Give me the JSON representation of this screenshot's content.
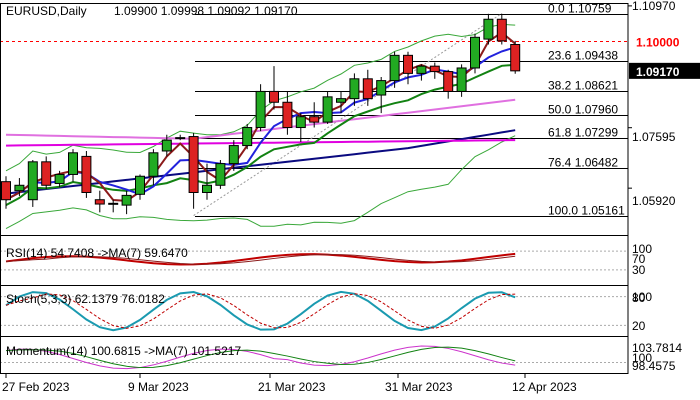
{
  "chart_data": {
    "type": "candlestick",
    "title": "EURUSD,Daily",
    "ohlc_header": "1.09900 1.09998 1.09092 1.09170",
    "last_price": "1.09170",
    "level_label": "1.10000",
    "price_axis": {
      "ylim": [
        1.0465,
        1.1105
      ],
      "ticks": [
        "1.10970",
        "1.07595",
        "1.05920"
      ]
    },
    "date_axis": [
      "27 Feb 2023",
      "9 Mar 2023",
      "21 Mar 2023",
      "31 Mar 2023",
      "12 Apr 2023"
    ],
    "fib_levels": [
      {
        "label": "0.0 1.10759",
        "value": 1.10759
      },
      {
        "label": "23.6 1.09438",
        "value": 1.09438
      },
      {
        "label": "38.2 1.08621",
        "value": 1.08621
      },
      {
        "label": "50.0 1.07960",
        "value": 1.0796
      },
      {
        "label": "61.8 1.07299",
        "value": 1.07299
      },
      {
        "label": "76.4 1.06482",
        "value": 1.06482
      },
      {
        "label": "100.0 1.05161",
        "value": 1.05161
      }
    ],
    "candles": [
      {
        "o": 1.061,
        "h": 1.0625,
        "l": 1.0535,
        "c": 1.056
      },
      {
        "o": 1.0585,
        "h": 1.062,
        "l": 1.057,
        "c": 1.06
      },
      {
        "o": 1.056,
        "h": 1.067,
        "l": 1.054,
        "c": 1.0665
      },
      {
        "o": 1.0665,
        "h": 1.068,
        "l": 1.059,
        "c": 1.06
      },
      {
        "o": 1.0605,
        "h": 1.064,
        "l": 1.0595,
        "c": 1.063
      },
      {
        "o": 1.063,
        "h": 1.07,
        "l": 1.061,
        "c": 1.069
      },
      {
        "o": 1.068,
        "h": 1.0695,
        "l": 1.0565,
        "c": 1.058
      },
      {
        "o": 1.056,
        "h": 1.0585,
        "l": 1.0525,
        "c": 1.0548
      },
      {
        "o": 1.0548,
        "h": 1.056,
        "l": 1.0525,
        "c": 1.055
      },
      {
        "o": 1.0545,
        "h": 1.0585,
        "l": 1.052,
        "c": 1.0572
      },
      {
        "o": 1.0575,
        "h": 1.063,
        "l": 1.056,
        "c": 1.0625
      },
      {
        "o": 1.0625,
        "h": 1.07,
        "l": 1.06,
        "c": 1.069
      },
      {
        "o": 1.0695,
        "h": 1.074,
        "l": 1.068,
        "c": 1.0725
      },
      {
        "o": 1.073,
        "h": 1.074,
        "l": 1.0725,
        "c": 1.0732
      },
      {
        "o": 1.0735,
        "h": 1.0745,
        "l": 1.0535,
        "c": 1.058
      },
      {
        "o": 1.058,
        "h": 1.066,
        "l": 1.056,
        "c": 1.06
      },
      {
        "o": 1.06,
        "h": 1.067,
        "l": 1.059,
        "c": 1.066
      },
      {
        "o": 1.066,
        "h": 1.0725,
        "l": 1.064,
        "c": 1.071
      },
      {
        "o": 1.071,
        "h": 1.077,
        "l": 1.07,
        "c": 1.076
      },
      {
        "o": 1.076,
        "h": 1.088,
        "l": 1.075,
        "c": 1.086
      },
      {
        "o": 1.086,
        "h": 1.093,
        "l": 1.081,
        "c": 1.083
      },
      {
        "o": 1.083,
        "h": 1.086,
        "l": 1.074,
        "c": 1.076
      },
      {
        "o": 1.076,
        "h": 1.08,
        "l": 1.072,
        "c": 1.079
      },
      {
        "o": 1.079,
        "h": 1.083,
        "l": 1.076,
        "c": 1.0775
      },
      {
        "o": 1.0775,
        "h": 1.086,
        "l": 1.077,
        "c": 1.0845
      },
      {
        "o": 1.083,
        "h": 1.086,
        "l": 1.08,
        "c": 1.084
      },
      {
        "o": 1.084,
        "h": 1.091,
        "l": 1.082,
        "c": 1.0895
      },
      {
        "o": 1.0895,
        "h": 1.092,
        "l": 1.082,
        "c": 1.084
      },
      {
        "o": 1.085,
        "h": 1.09,
        "l": 1.08,
        "c": 1.089
      },
      {
        "o": 1.089,
        "h": 1.097,
        "l": 1.087,
        "c": 1.096
      },
      {
        "o": 1.096,
        "h": 1.097,
        "l": 1.088,
        "c": 1.091
      },
      {
        "o": 1.091,
        "h": 1.0935,
        "l": 1.089,
        "c": 1.093
      },
      {
        "o": 1.093,
        "h": 1.094,
        "l": 1.0895,
        "c": 1.0915
      },
      {
        "o": 1.0915,
        "h": 1.092,
        "l": 1.084,
        "c": 1.086
      },
      {
        "o": 1.086,
        "h": 1.0935,
        "l": 1.0845,
        "c": 1.0925
      },
      {
        "o": 1.0925,
        "h": 1.102,
        "l": 1.091,
        "c": 1.101
      },
      {
        "o": 1.1005,
        "h": 1.1075,
        "l": 1.099,
        "c": 1.106
      },
      {
        "o": 1.106,
        "h": 1.1075,
        "l": 1.099,
        "c": 1.1
      },
      {
        "o": 1.099,
        "h": 1.1,
        "l": 1.0909,
        "c": 1.0917
      }
    ],
    "indicators": [
      {
        "label": "RSI(14) 54.7408 ->MA(7) 59.6470",
        "levels": [
          "100",
          "70",
          "30"
        ],
        "ylim": [
          0,
          100
        ]
      },
      {
        "label": "Stoch(5,3,3) 62.1379 76.0182",
        "levels": [
          "100",
          "80",
          "20"
        ],
        "ylim": [
          0,
          100
        ]
      },
      {
        "label": "Momentum(14) 100.6815 ->MA(7) 101.5217",
        "levels": [
          "103.7814",
          "100",
          "98.4575"
        ],
        "ylim": [
          98.3,
          104.0
        ]
      }
    ],
    "colors": {
      "bull": "#22aa22",
      "bear": "#dd2222",
      "ma_dark": "#0a0a80",
      "ma_blue": "#2222dd",
      "ma_brown": "#8b1a1a",
      "ma_green": "#128212",
      "ma_pink": "#e070e0",
      "magenta": "#e000e0",
      "level_red": "#ff0000",
      "bband": "#3aa83a",
      "rsi_line": "#c00000",
      "ind_teal": "#1a9ab0",
      "ind_pink": "#cc33cc"
    }
  }
}
